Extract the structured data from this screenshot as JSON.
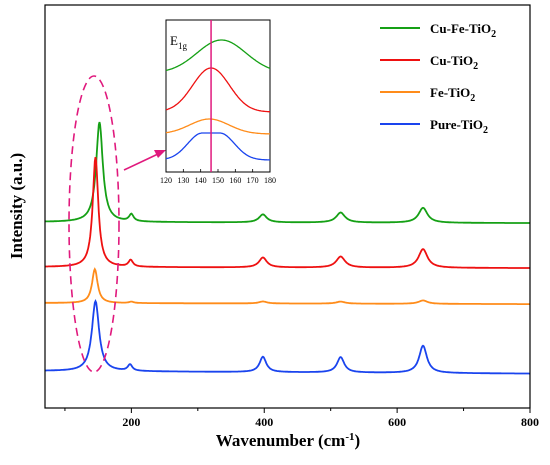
{
  "chart_data": {
    "type": "line",
    "xlabel": "Wavenumber (cm",
    "xlabel_sup": "-1",
    "xlabel_suffix": ")",
    "ylabel": "Intensity (a.u.)",
    "xlim": [
      70,
      800
    ],
    "x_ticks": [
      200,
      400,
      600,
      800
    ],
    "x_tick_labels": [
      "200",
      "400",
      "600",
      "800"
    ],
    "grid": false,
    "legend_position": "top-right",
    "series": [
      {
        "name": "Cu-Fe-TiO",
        "sub": "2",
        "color": "#15a015",
        "baseline": 0.0,
        "peaks": [
          [
            152,
            1.0,
            12
          ],
          [
            200,
            0.07,
            8
          ],
          [
            398,
            0.08,
            14
          ],
          [
            515,
            0.1,
            16
          ],
          [
            639,
            0.15,
            16
          ]
        ]
      },
      {
        "name": "Cu-TiO",
        "sub": "2",
        "color": "#ee1111",
        "baseline": 0.0,
        "peaks": [
          [
            146,
            1.0,
            10
          ],
          [
            199,
            0.06,
            8
          ],
          [
            398,
            0.09,
            14
          ],
          [
            515,
            0.1,
            16
          ],
          [
            639,
            0.17,
            16
          ]
        ]
      },
      {
        "name": "Fe-TiO",
        "sub": "2",
        "color": "#ff8c1a",
        "baseline": 0.0,
        "peaks": [
          [
            145,
            1.0,
            10
          ],
          [
            200,
            0.04,
            8
          ],
          [
            398,
            0.06,
            14
          ],
          [
            515,
            0.06,
            16
          ],
          [
            639,
            0.1,
            16
          ]
        ]
      },
      {
        "name": "Pure-TiO",
        "sub": "2",
        "color": "#1a44ee",
        "baseline": 0.0,
        "peaks": [
          [
            146,
            1.0,
            13
          ],
          [
            198,
            0.09,
            8
          ],
          [
            398,
            0.22,
            12
          ],
          [
            515,
            0.22,
            13
          ],
          [
            639,
            0.39,
            14
          ]
        ]
      }
    ],
    "inset": {
      "label": "E",
      "label_sub": "1g",
      "xlim": [
        120,
        180
      ],
      "x_ticks": [
        120,
        130,
        140,
        150,
        160,
        170,
        180
      ],
      "x_tick_labels": [
        "120",
        "130",
        "140",
        "150",
        "160",
        "170",
        "180"
      ],
      "marker_x": 146,
      "marker_color": "#e0197d"
    }
  }
}
